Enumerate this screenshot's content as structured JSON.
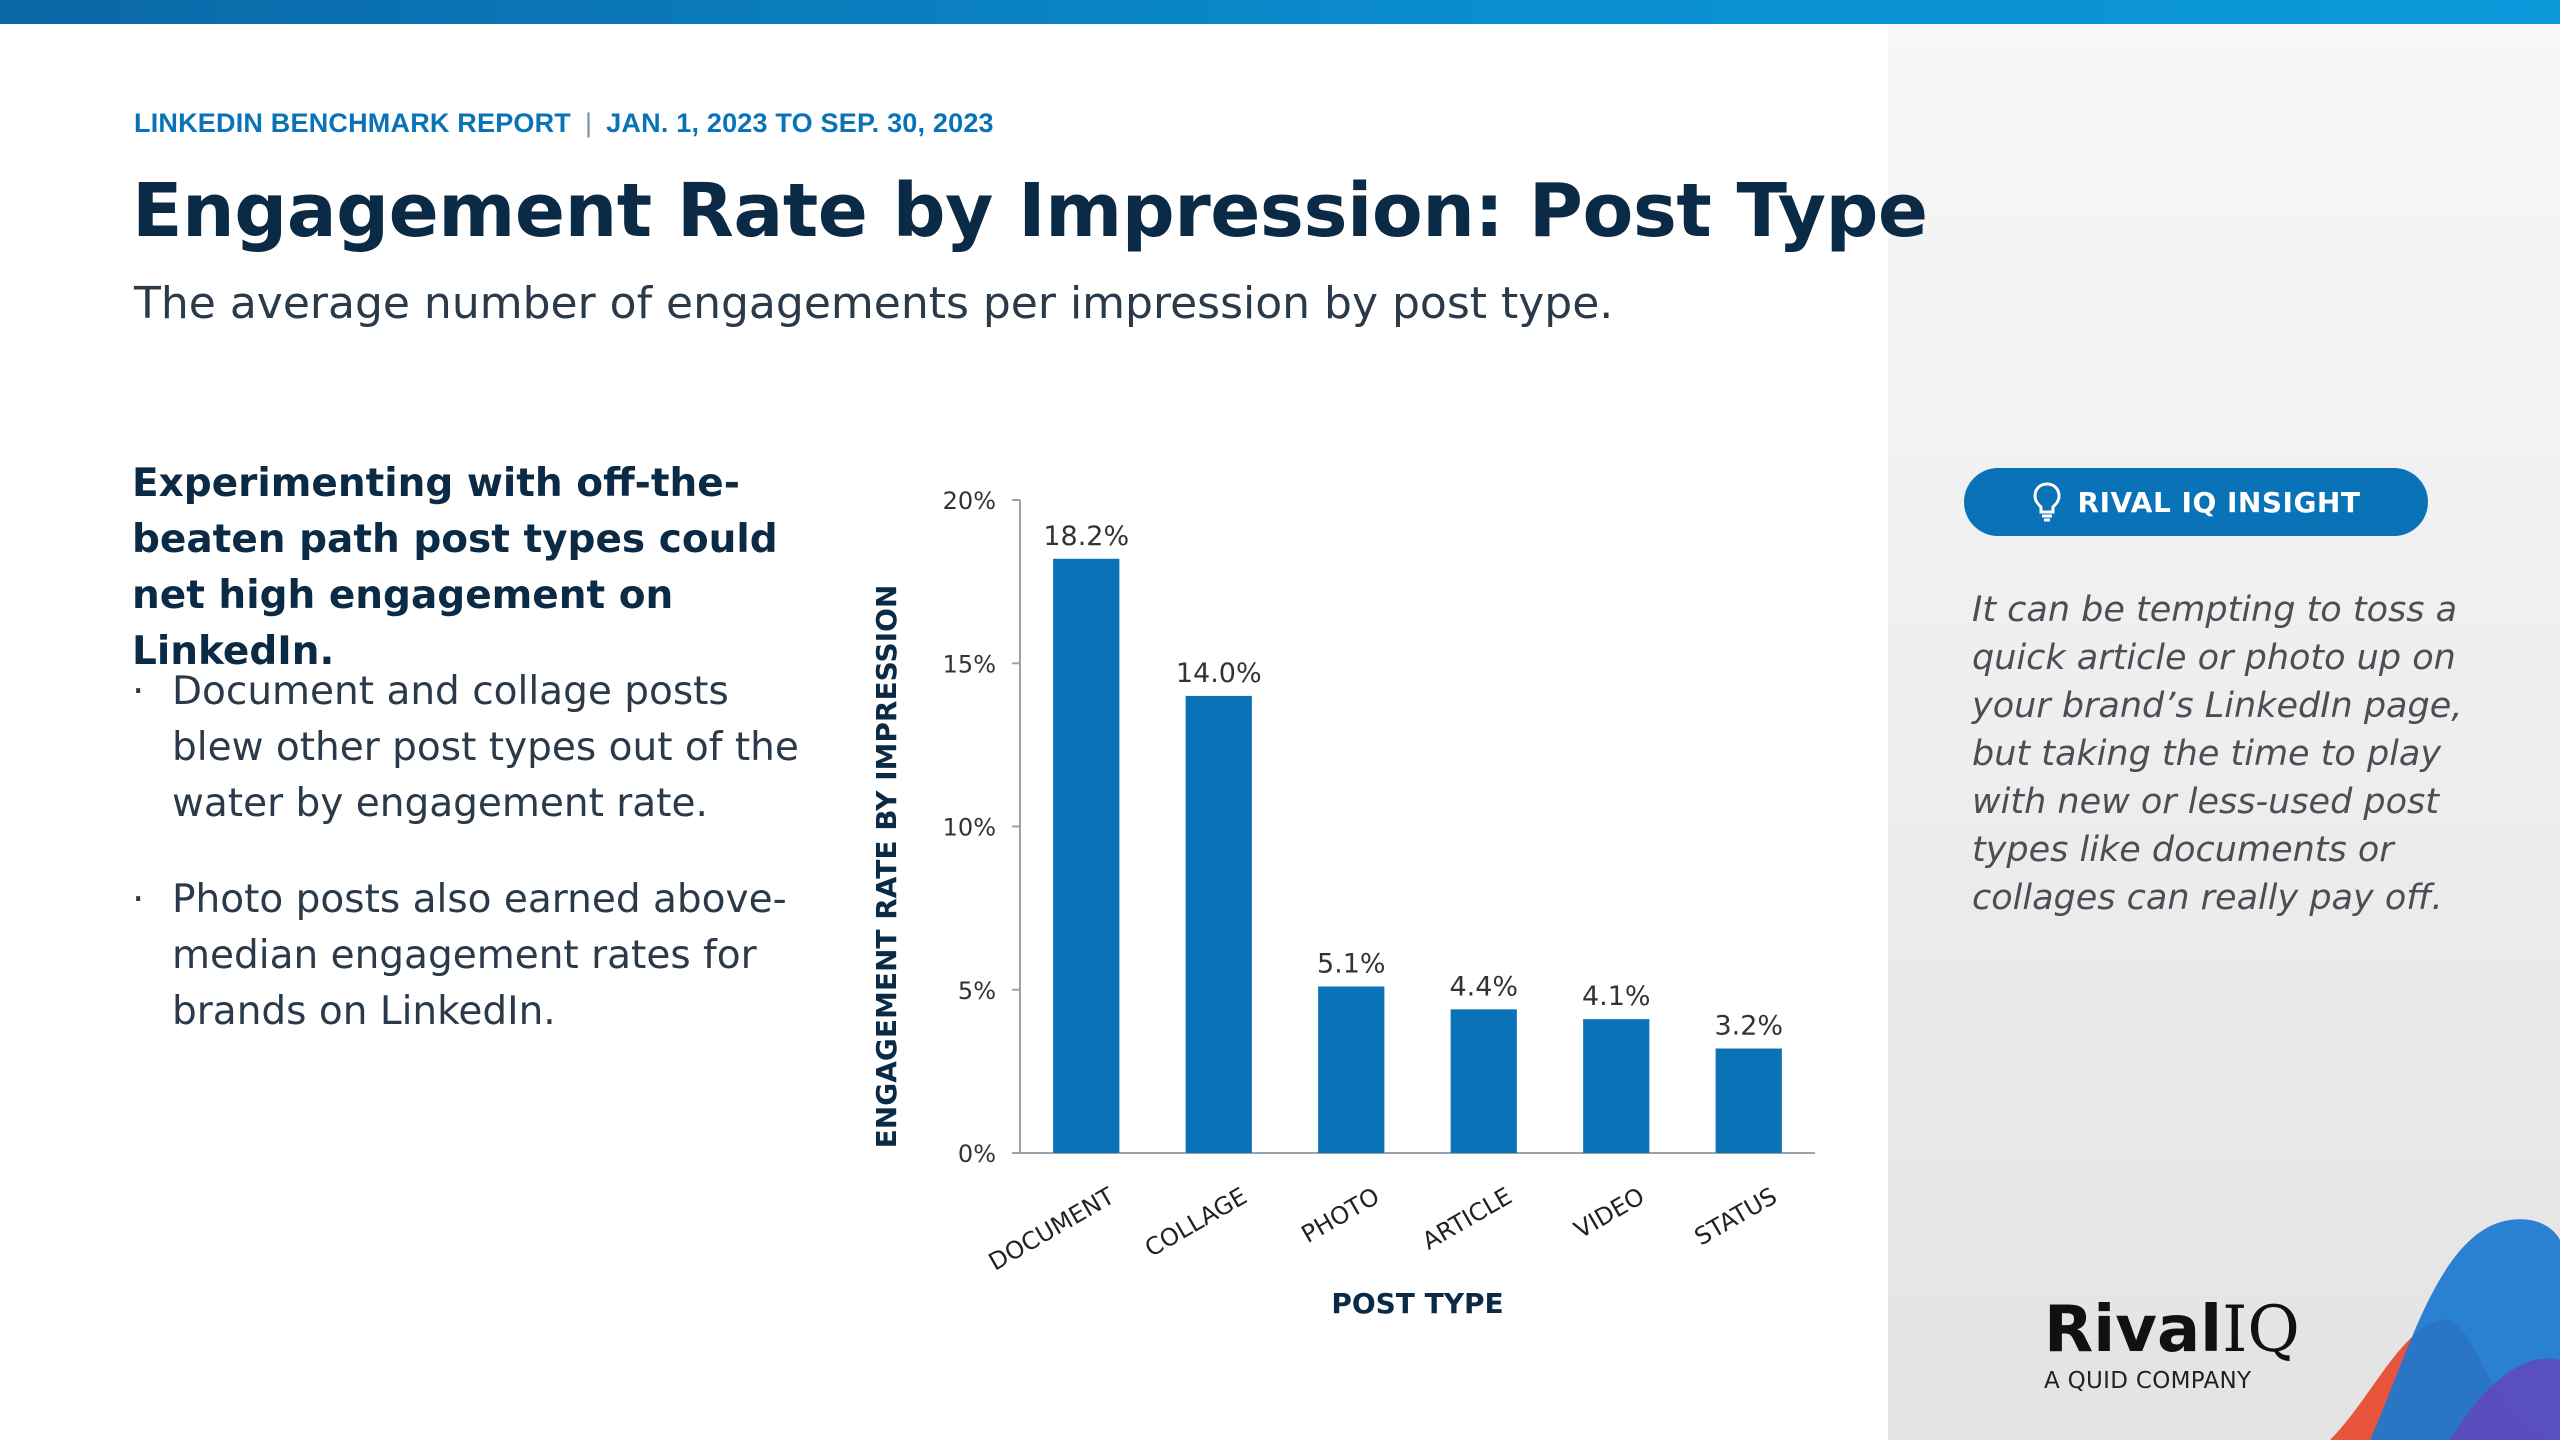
{
  "header": {
    "report": "LINKEDIN BENCHMARK REPORT",
    "separator": "|",
    "date_range": "JAN. 1, 2023 TO SEP. 30, 2023",
    "title": "Engagement Rate by Impression: Post Type",
    "subtitle": "The average number of engagements per impression by post type."
  },
  "left": {
    "lead": "Experimenting with off-the-beaten path post types could net high engagement on LinkedIn.",
    "bullets": [
      "Document and collage posts blew other post types out of the water by engagement rate.",
      "Photo posts also earned above-median engagement rates for brands on LinkedIn."
    ],
    "bullet_symbol": "·"
  },
  "chart_data": {
    "type": "bar",
    "categories": [
      "DOCUMENT",
      "COLLAGE",
      "PHOTO",
      "ARTICLE",
      "VIDEO",
      "STATUS"
    ],
    "values": [
      18.2,
      14.0,
      5.1,
      4.4,
      4.1,
      3.2
    ],
    "value_labels": [
      "18.2%",
      "14.0%",
      "5.1%",
      "4.4%",
      "4.1%",
      "3.2%"
    ],
    "xlabel": "POST TYPE",
    "ylabel": "ENGAGEMENT RATE BY IMPRESSION",
    "ylim": [
      0,
      20
    ],
    "yticks": [
      0,
      5,
      10,
      15,
      20
    ],
    "ytick_labels": [
      "0%",
      "5%",
      "10%",
      "15%",
      "20%"
    ],
    "bar_color": "#0a73b8",
    "grid": false
  },
  "insight": {
    "label": "RIVAL IQ INSIGHT",
    "icon": "lightbulb-icon",
    "text": "It can be tempting to toss a quick article or photo up on your brand’s LinkedIn page, but taking the time to play with new or less-used post types like documents or collages can really pay off."
  },
  "logo": {
    "name_bold": "Rival",
    "name_light": "IQ",
    "tagline": "A QUID COMPANY"
  },
  "colors": {
    "accent": "#0a73b8",
    "title": "#0b2a45",
    "panel": "#ededed"
  }
}
